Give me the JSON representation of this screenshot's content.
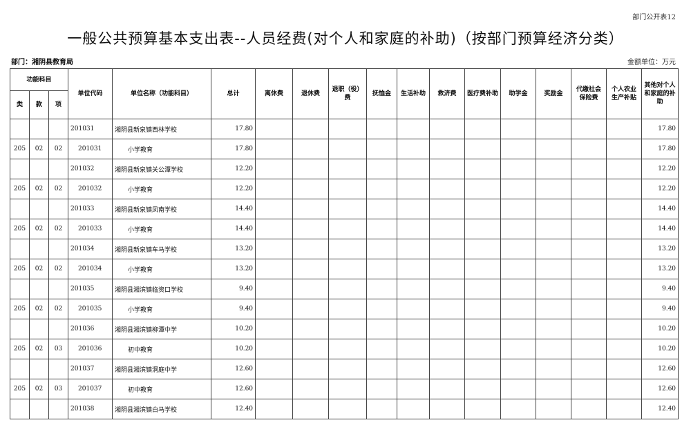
{
  "form_number": "部门公开表12",
  "title": "一般公共预算基本支出表--人员经费(对个人和家庭的补助)（按部门预算经济分类）",
  "department": "部门：湘阴县教育局",
  "unit": "金额单位：万元",
  "headers": {
    "func_group": "功能科目",
    "lei": "类",
    "kuan": "款",
    "xiang": "项",
    "code": "单位代码",
    "name": "单位名称（功能科目）",
    "total": "总计",
    "cols": [
      "离休费",
      "退休费",
      "退职（役）费",
      "抚恤金",
      "生活补助",
      "救济费",
      "医疗费补助",
      "助学金",
      "奖励金",
      "代缴社会保险费",
      "个人农业生产补贴",
      "其他对个人和家庭的补助"
    ]
  },
  "rows": [
    {
      "lei": "",
      "kuan": "",
      "xiang": "",
      "code": "201031",
      "name": "湘阴县新泉镇西林学校",
      "total": "17.80",
      "other": "17.80"
    },
    {
      "lei": "205",
      "kuan": "02",
      "xiang": "02",
      "code": "201031",
      "name": "小学教育",
      "total": "17.80",
      "other": "17.80"
    },
    {
      "lei": "",
      "kuan": "",
      "xiang": "",
      "code": "201032",
      "name": "湘阴县新泉镇关公潭学校",
      "total": "12.20",
      "other": "12.20"
    },
    {
      "lei": "205",
      "kuan": "02",
      "xiang": "02",
      "code": "201032",
      "name": "小学教育",
      "total": "12.20",
      "other": "12.20"
    },
    {
      "lei": "",
      "kuan": "",
      "xiang": "",
      "code": "201033",
      "name": "湘阴县新泉镇凤南学校",
      "total": "14.40",
      "other": "14.40"
    },
    {
      "lei": "205",
      "kuan": "02",
      "xiang": "02",
      "code": "201033",
      "name": "小学教育",
      "total": "14.40",
      "other": "14.40"
    },
    {
      "lei": "",
      "kuan": "",
      "xiang": "",
      "code": "201034",
      "name": "湘阴县新泉镇车马学校",
      "total": "13.20",
      "other": "13.20"
    },
    {
      "lei": "205",
      "kuan": "02",
      "xiang": "02",
      "code": "201034",
      "name": "小学教育",
      "total": "13.20",
      "other": "13.20"
    },
    {
      "lei": "",
      "kuan": "",
      "xiang": "",
      "code": "201035",
      "name": "湘阴县湘滨镇临资口学校",
      "total": "9.40",
      "other": "9.40"
    },
    {
      "lei": "205",
      "kuan": "02",
      "xiang": "02",
      "code": "201035",
      "name": "小学教育",
      "total": "9.40",
      "other": "9.40"
    },
    {
      "lei": "",
      "kuan": "",
      "xiang": "",
      "code": "201036",
      "name": "湘阴县湘滨镇柳潭中学",
      "total": "10.20",
      "other": "10.20"
    },
    {
      "lei": "205",
      "kuan": "02",
      "xiang": "03",
      "code": "201036",
      "name": "初中教育",
      "total": "10.20",
      "other": "10.20"
    },
    {
      "lei": "",
      "kuan": "",
      "xiang": "",
      "code": "201037",
      "name": "湘阴县湘滨镇洞庭中学",
      "total": "12.60",
      "other": "12.60"
    },
    {
      "lei": "205",
      "kuan": "02",
      "xiang": "03",
      "code": "201037",
      "name": "初中教育",
      "total": "12.60",
      "other": "12.60"
    },
    {
      "lei": "",
      "kuan": "",
      "xiang": "",
      "code": "201038",
      "name": "湘阴县湘滨镇白马学校",
      "total": "12.40",
      "other": "12.40"
    }
  ]
}
